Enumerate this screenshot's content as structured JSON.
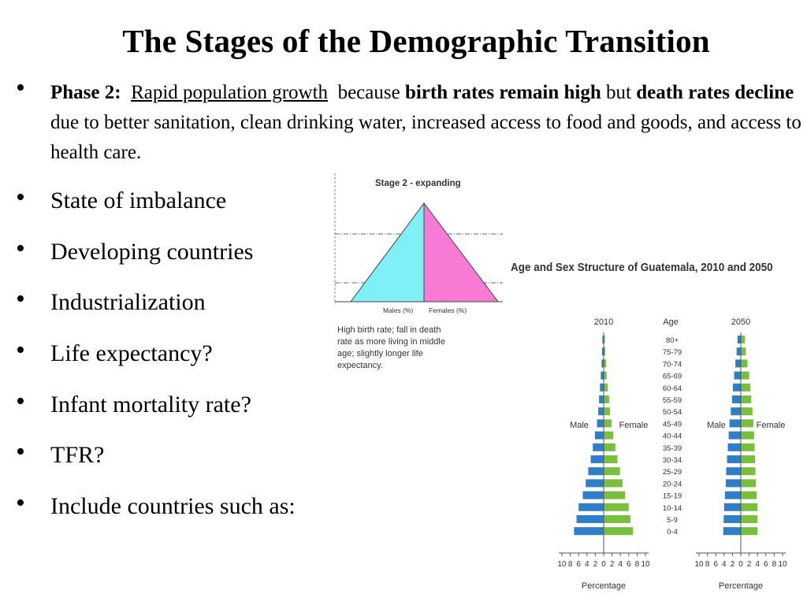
{
  "slide": {
    "title": "The Stages of the Demographic Transition",
    "phase": {
      "label": "Phase 2:",
      "underlined": "Rapid population growth",
      "text1": "because",
      "bold1": "birth rates remain high",
      "text2": "but",
      "bold2": "death rates decline",
      "text3": "due to better sanitation, clean drinking water, increased access to food and goods, and access to health care."
    },
    "bullets": [
      "State of imbalance",
      "Developing countries",
      "Industrialization",
      "Life expectancy?",
      "Infant mortality rate?",
      "TFR?",
      "Include countries such as:"
    ]
  },
  "stage_diagram": {
    "title": "Stage 2 - expanding",
    "males_label": "Males (%)",
    "females_label": "Females (%)",
    "caption": [
      "High birth rate; fall in death",
      "rate as more living in middle",
      "age; slightly longer life",
      "expectancy."
    ],
    "colors": {
      "male": "#7ff0f5",
      "female": "#f77bd5"
    }
  },
  "chart_data": {
    "type": "bar",
    "title": "Age and Sex Structure of Guatemala, 2010 and 2050",
    "age_header": "Age",
    "age_groups": [
      "80+",
      "75-79",
      "70-74",
      "65-69",
      "60-64",
      "55-59",
      "50-54",
      "45-49",
      "40-44",
      "35-39",
      "30-34",
      "25-29",
      "20-24",
      "15-19",
      "10-14",
      "5-9",
      "0-4"
    ],
    "xlabel": "Percentage",
    "ticks": [
      "10",
      "8",
      "6",
      "4",
      "2",
      "0",
      "2",
      "4",
      "6",
      "8",
      "10"
    ],
    "male_label": "Male",
    "female_label": "Female",
    "colors": {
      "male": "#2f7ec7",
      "female": "#79bf3d"
    },
    "panels": [
      {
        "year": "2010",
        "male": [
          0.3,
          0.4,
          0.5,
          0.7,
          0.9,
          1.1,
          1.3,
          1.6,
          2.1,
          2.6,
          3.1,
          3.7,
          4.3,
          5.0,
          6.0,
          6.5,
          7.1
        ],
        "female": [
          0.3,
          0.4,
          0.6,
          0.7,
          1.0,
          1.3,
          1.5,
          1.9,
          2.3,
          2.8,
          3.3,
          3.9,
          4.5,
          5.1,
          6.0,
          6.4,
          7.0
        ]
      },
      {
        "year": "2050",
        "male": [
          0.8,
          1.0,
          1.3,
          1.6,
          1.9,
          2.1,
          2.4,
          2.7,
          2.9,
          3.1,
          3.3,
          3.5,
          3.6,
          3.8,
          4.0,
          4.1,
          4.2
        ],
        "female": [
          1.0,
          1.2,
          1.6,
          2.0,
          2.3,
          2.5,
          2.8,
          3.0,
          3.2,
          3.3,
          3.4,
          3.5,
          3.6,
          3.8,
          4.0,
          4.0,
          4.0
        ]
      }
    ]
  }
}
